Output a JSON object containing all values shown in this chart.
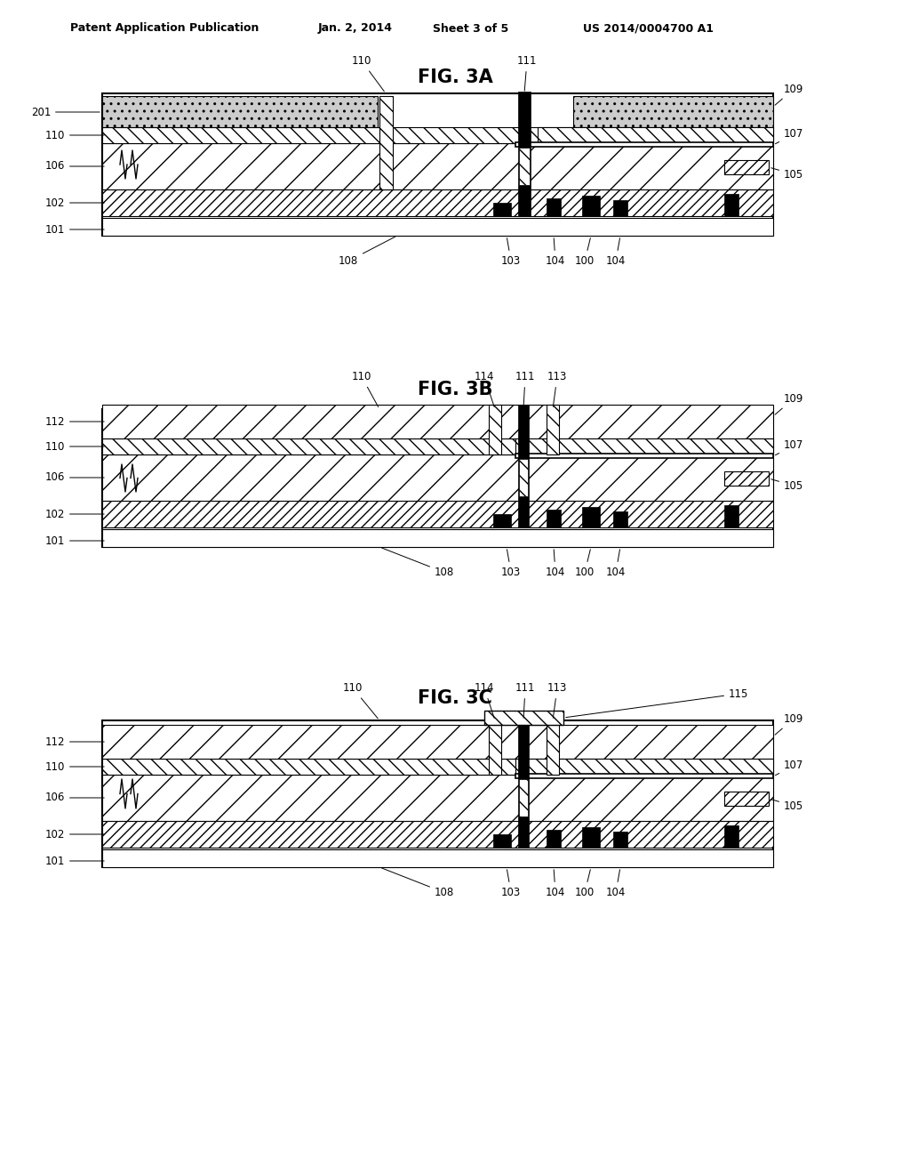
{
  "title_header": "Patent Application Publication",
  "date_header": "Jan. 2, 2014",
  "sheet_header": "Sheet 3 of 5",
  "patent_header": "US 2014/0004700 A1",
  "fig_titles": [
    "FIG. 3A",
    "FIG. 3B",
    "FIG. 3C"
  ],
  "background_color": "#ffffff"
}
